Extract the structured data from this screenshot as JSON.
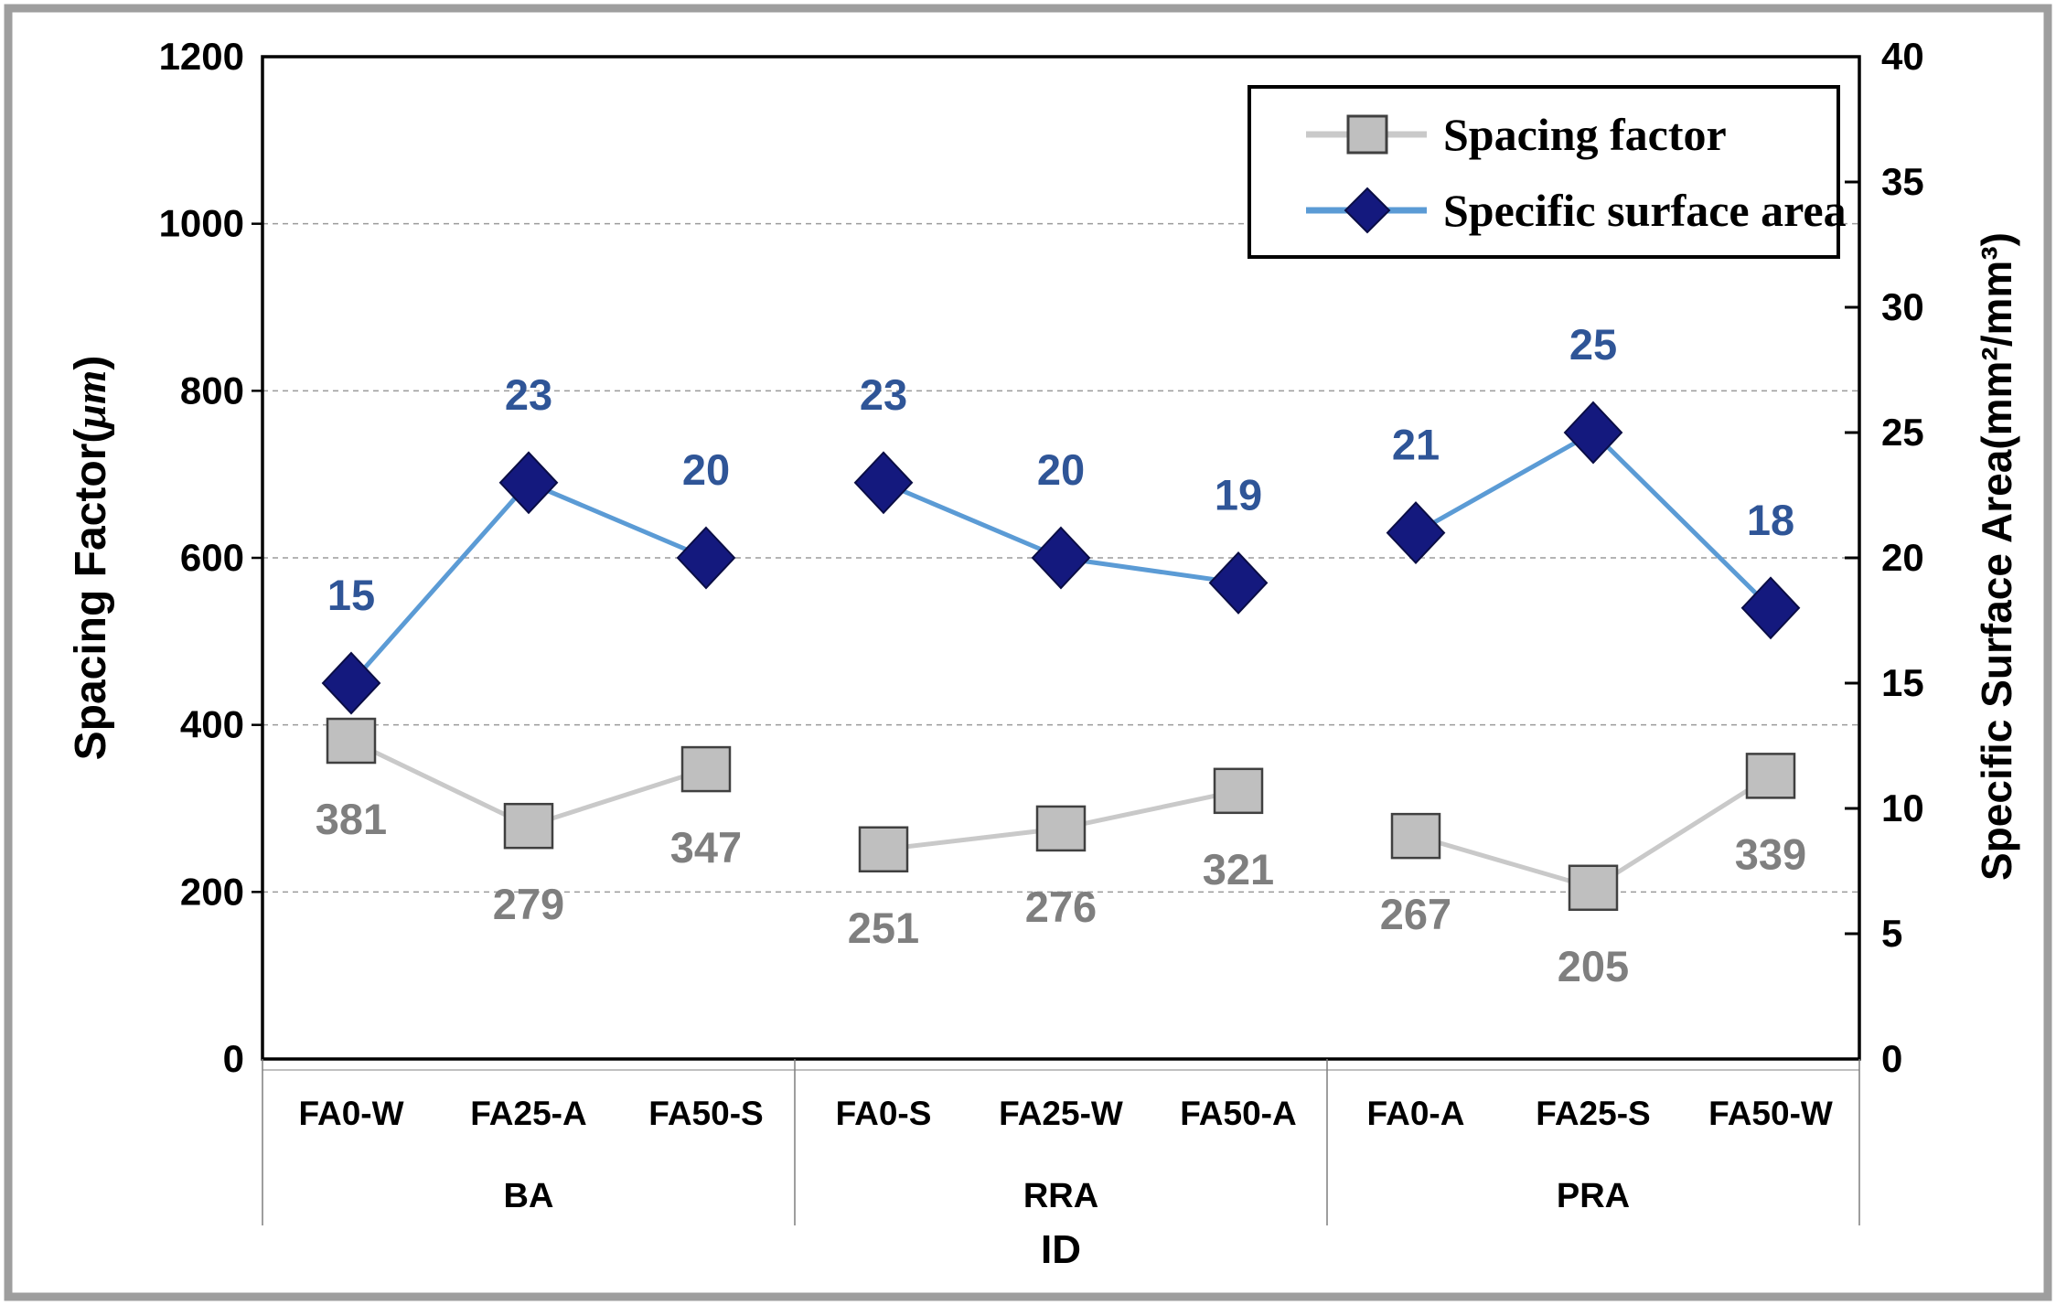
{
  "chart_data": {
    "type": "line",
    "title": "",
    "xlabel": "ID",
    "left_axis": {
      "title_prefix": "Spacing Factor(",
      "title_unit": "μm",
      "title_suffix": ")",
      "min": 0,
      "max": 1200,
      "tick_step": 200,
      "tick_labels": [
        "0",
        "200",
        "400",
        "600",
        "800",
        "1000",
        "1200"
      ]
    },
    "right_axis": {
      "title": "Specific Surface Area(mm²/mm³)",
      "min": 0,
      "max": 40,
      "tick_step": 5,
      "tick_labels": [
        "0",
        "5",
        "10",
        "15",
        "20",
        "25",
        "30",
        "35",
        "40"
      ]
    },
    "groups": [
      {
        "name": "BA",
        "categories": [
          "FA0-W",
          "FA25-A",
          "FA50-S"
        ]
      },
      {
        "name": "RRA",
        "categories": [
          "FA0-S",
          "FA25-W",
          "FA50-A"
        ]
      },
      {
        "name": "PRA",
        "categories": [
          "FA0-A",
          "FA25-S",
          "FA50-W"
        ]
      }
    ],
    "categories": [
      "FA0-W",
      "FA25-A",
      "FA50-S",
      "FA0-S",
      "FA25-W",
      "FA50-A",
      "FA0-A",
      "FA25-S",
      "FA50-W"
    ],
    "series": [
      {
        "name": "Spacing factor",
        "axis": "left",
        "marker": "square",
        "marker_fill": "#BFBFBF",
        "marker_stroke": "#404040",
        "line_color": "#C9C9C9",
        "label_color": "#7F7F7F",
        "values": [
          381,
          279,
          347,
          251,
          276,
          321,
          267,
          205,
          339
        ]
      },
      {
        "name": "Specific surface area",
        "axis": "right",
        "marker": "diamond",
        "marker_fill": "#14197E",
        "marker_stroke": "#0A0D45",
        "line_color": "#5B9BD5",
        "label_color": "#2F5597",
        "values": [
          15,
          23,
          20,
          23,
          20,
          19,
          21,
          25,
          18
        ]
      }
    ],
    "legend": {
      "position": "top-right",
      "entries": [
        "Spacing factor",
        "Specific surface area"
      ]
    },
    "grid": {
      "horizontal": "dashed",
      "color": "#9B9B9B"
    },
    "frame_color": "#9E9E9E"
  }
}
